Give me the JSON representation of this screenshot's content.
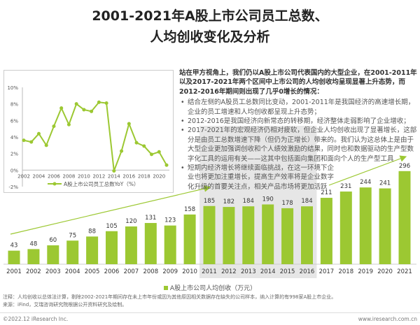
{
  "title": {
    "line1": "2001-2021年A股上市公司员工总数、",
    "line2": "人均创收变化及分析"
  },
  "text": {
    "lead": "站在甲方视角上，我们仍以A股上市公司代表国内的大型企业，在2001-2011年以及2017-2021年两个区间中上市公司的人均创收均呈现显著上升态势，而2012-2016年期间则出现了几乎0增长的情况：",
    "bullets": [
      "结合左侧的A股员工总数同比变动，2001-2011年是我国经济的高速增长期，企业的员工增速和人均创收都呈现上升态势；",
      "2012-2016是我国经济向新常态的转移期，经济整体走弱影响了企业增收；",
      "2017-2021年的宏观经济仍相对疲软，但企业人均创收出现了显著增长，这部分是由员工总数增速下降（但仍为正增长）带来的。我们认为这总体上是由于大型企业更加强调创收和个人绩效激励的结果，同时也和数据驱动的生产型数字化工具的运用有关——这其中包括面向集团和面向个人的生产型工具",
      "短期内经济增长将继续面临挑战，在这一环境下企业也将更加注重增长，提高生产效率将是企业数字化升级的首要关注点，相关产品市场将更加活跃"
    ]
  },
  "notes": {
    "note": "注释：人均创收以总体法计算，剔除2002-2021年期间存在未上市年份或因为其他原因相关数据存在缺失的公司样本，纳入计算的有998家A股上市企业。",
    "source": "来源：iFind，艾瑞咨询研究院根据公开资料研究及绘制。"
  },
  "footer": {
    "left": "©2022.12 iResearch Inc.",
    "right": "www.iresearch.com.cn"
  },
  "colors": {
    "bar": "#9cc832",
    "shade": "#e6e6e6",
    "line": "#9cc832"
  },
  "chart_data": [
    {
      "type": "bar",
      "title": "",
      "categories": [
        "2001",
        "2002",
        "2003",
        "2004",
        "2005",
        "2006",
        "2007",
        "2008",
        "2009",
        "2010",
        "2011",
        "2012",
        "2013",
        "2014",
        "2015",
        "2016",
        "2017",
        "2018",
        "2019",
        "2020",
        "2021"
      ],
      "values": [
        43,
        48,
        60,
        75,
        88,
        105,
        120,
        131,
        123,
        158,
        185,
        182,
        184,
        190,
        178,
        184,
        211,
        231,
        244,
        241,
        296
      ],
      "legend": "A股上市公司人均创收（万元）",
      "shaded_range": [
        "2011",
        "2016"
      ]
    },
    {
      "type": "line",
      "categories": [
        "2002",
        "2003",
        "2004",
        "2005",
        "2006",
        "2007",
        "2008",
        "2009",
        "2010",
        "2011",
        "2012",
        "2013",
        "2014",
        "2015",
        "2016",
        "2017",
        "2018",
        "2019",
        "2020",
        "2021"
      ],
      "xticks": [
        "2002",
        "2004",
        "2006",
        "2008",
        "2010",
        "2012",
        "2014",
        "2016",
        "2018",
        "2020"
      ],
      "values": [
        3.6,
        3.4,
        4.4,
        3.0,
        5.3,
        7.5,
        5.5,
        8.0,
        7.3,
        7.1,
        8.2,
        8.1,
        -0.1,
        2.3,
        5.6,
        3.3,
        2.9,
        1.9,
        2.2,
        0.6
      ],
      "yticks": [
        "10%",
        "8%",
        "6%",
        "4%",
        "2%",
        "0%",
        "-2%"
      ],
      "ylim": [
        -2,
        10
      ],
      "legend": "A股上市公司员工总数YoY（%）"
    }
  ]
}
